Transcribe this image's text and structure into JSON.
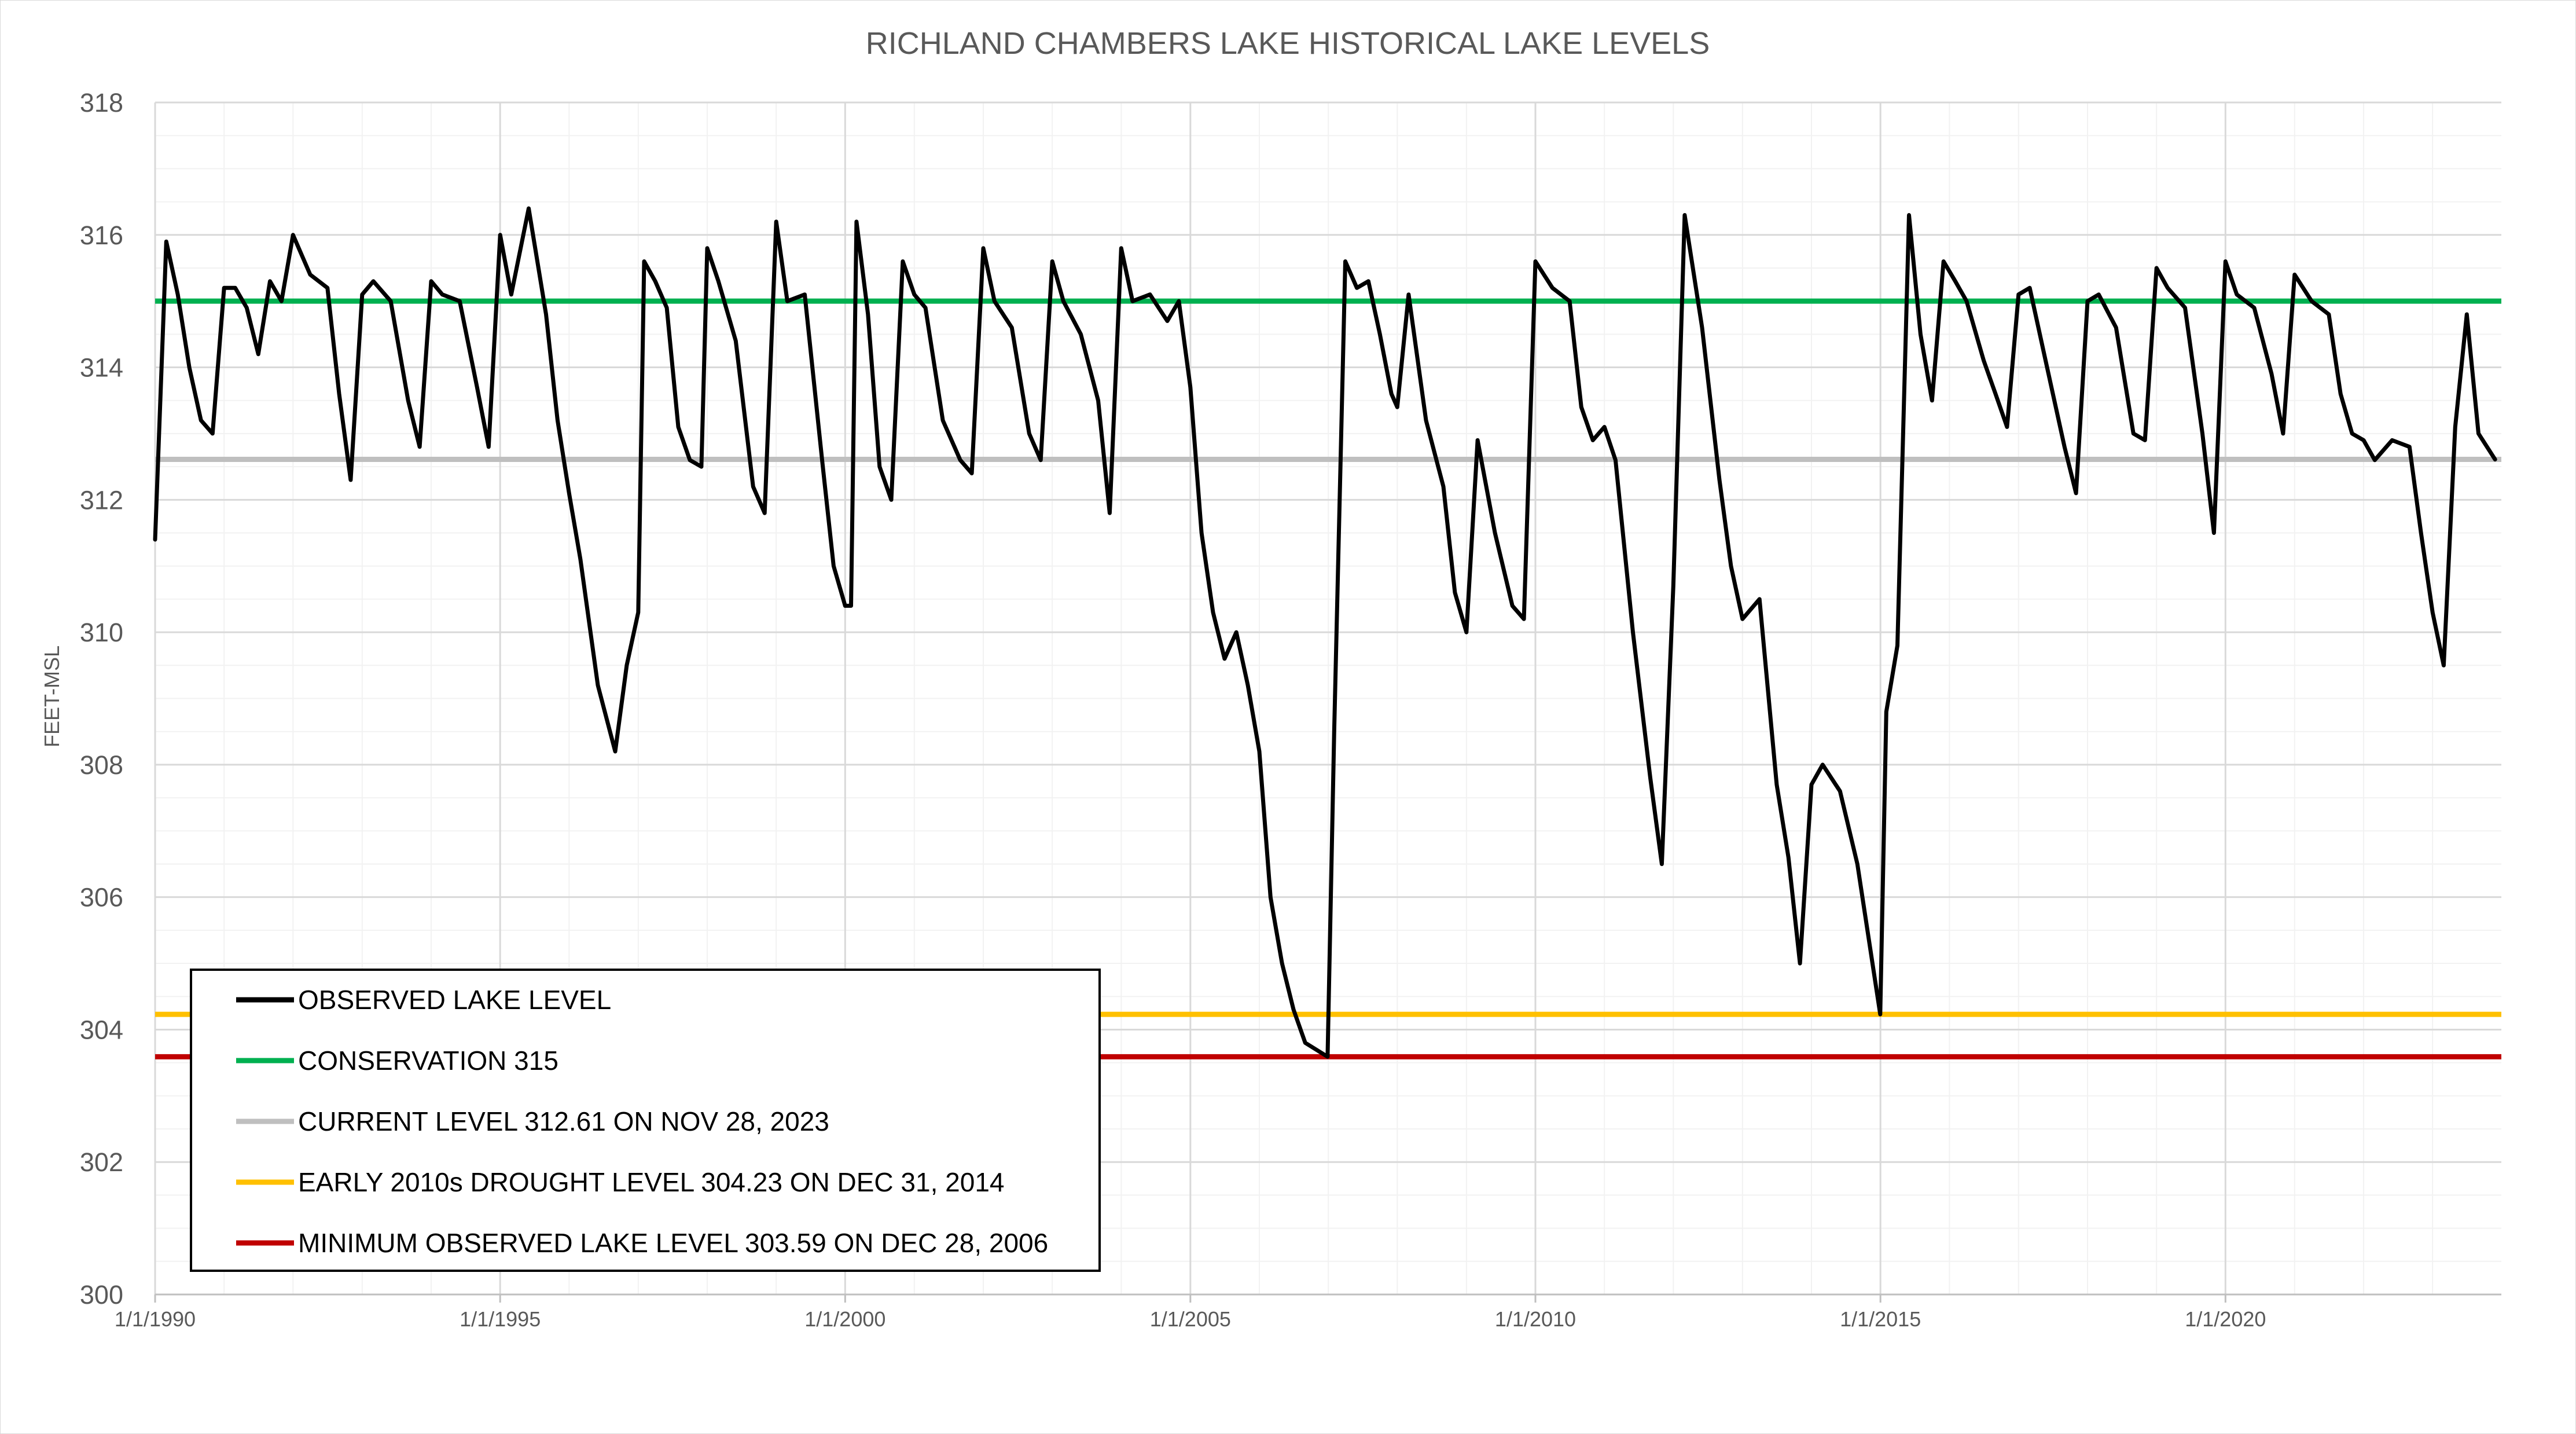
{
  "chart_data": {
    "type": "line",
    "title": "RICHLAND CHAMBERS LAKE HISTORICAL LAKE LEVELS",
    "xlabel": "",
    "ylabel": "FEET-MSL",
    "xlim": [
      "1990-01-01",
      "2023-12-31"
    ],
    "ylim": [
      300,
      318
    ],
    "y_ticks": [
      "300",
      "302",
      "304",
      "306",
      "308",
      "310",
      "312",
      "314",
      "316",
      "318"
    ],
    "x_ticks": [
      {
        "date": "1990-01-01",
        "label": "1/1/1990"
      },
      {
        "date": "1995-01-01",
        "label": "1/1/1995"
      },
      {
        "date": "2000-01-01",
        "label": "1/1/2000"
      },
      {
        "date": "2005-01-01",
        "label": "1/1/2005"
      },
      {
        "date": "2010-01-01",
        "label": "1/1/2010"
      },
      {
        "date": "2015-01-01",
        "label": "1/1/2015"
      },
      {
        "date": "2020-01-01",
        "label": "1/1/2020"
      }
    ],
    "grid": true,
    "legend_position": "bottom-left",
    "series": [
      {
        "name": "OBSERVED LAKE LEVEL",
        "color": "#000000",
        "x": [
          "1990-01-01",
          "1990-03-01",
          "1990-05-01",
          "1990-07-01",
          "1990-09-01",
          "1990-11-01",
          "1991-01-01",
          "1991-03-01",
          "1991-05-01",
          "1991-07-01",
          "1991-09-01",
          "1991-11-01",
          "1992-01-01",
          "1992-04-01",
          "1992-07-01",
          "1992-09-01",
          "1992-11-01",
          "1993-01-01",
          "1993-03-01",
          "1993-06-01",
          "1993-09-01",
          "1993-11-01",
          "1994-01-01",
          "1994-03-01",
          "1994-06-01",
          "1994-09-01",
          "1994-11-01",
          "1995-01-01",
          "1995-03-01",
          "1995-06-01",
          "1995-09-01",
          "1995-11-01",
          "1996-01-01",
          "1996-03-01",
          "1996-06-01",
          "1996-09-01",
          "1996-11-01",
          "1997-01-01",
          "1997-02-01",
          "1997-04-01",
          "1997-06-01",
          "1997-08-01",
          "1997-10-01",
          "1997-12-01",
          "1998-01-01",
          "1998-03-01",
          "1998-06-01",
          "1998-09-01",
          "1998-11-01",
          "1999-01-01",
          "1999-03-01",
          "1999-06-01",
          "1999-09-01",
          "1999-11-01",
          "2000-01-01",
          "2000-02-01",
          "2000-03-01",
          "2000-05-01",
          "2000-07-01",
          "2000-09-01",
          "2000-11-01",
          "2001-01-01",
          "2001-03-01",
          "2001-06-01",
          "2001-09-01",
          "2001-11-01",
          "2002-01-01",
          "2002-03-01",
          "2002-06-01",
          "2002-09-01",
          "2002-11-01",
          "2003-01-01",
          "2003-03-01",
          "2003-06-01",
          "2003-09-01",
          "2003-11-01",
          "2004-01-01",
          "2004-03-01",
          "2004-06-01",
          "2004-09-01",
          "2004-11-01",
          "2005-01-01",
          "2005-03-01",
          "2005-05-01",
          "2005-07-01",
          "2005-09-01",
          "2005-11-01",
          "2006-01-01",
          "2006-03-01",
          "2006-05-01",
          "2006-07-01",
          "2006-09-01",
          "2006-12-28",
          "2007-02-01",
          "2007-04-01",
          "2007-06-01",
          "2007-08-01",
          "2007-10-01",
          "2007-12-01",
          "2008-01-01",
          "2008-03-01",
          "2008-06-01",
          "2008-09-01",
          "2008-11-01",
          "2009-01-01",
          "2009-03-01",
          "2009-06-01",
          "2009-09-01",
          "2009-11-01",
          "2010-01-01",
          "2010-04-01",
          "2010-07-01",
          "2010-09-01",
          "2010-11-01",
          "2011-01-01",
          "2011-03-01",
          "2011-06-01",
          "2011-09-01",
          "2011-11-01",
          "2012-01-01",
          "2012-03-01",
          "2012-06-01",
          "2012-09-01",
          "2012-11-01",
          "2013-01-01",
          "2013-04-01",
          "2013-07-01",
          "2013-09-01",
          "2013-11-01",
          "2014-01-01",
          "2014-03-01",
          "2014-06-01",
          "2014-09-01",
          "2014-12-31",
          "2015-02-01",
          "2015-04-01",
          "2015-06-01",
          "2015-08-01",
          "2015-10-01",
          "2015-12-01",
          "2016-02-01",
          "2016-04-01",
          "2016-07-01",
          "2016-09-01",
          "2016-11-01",
          "2017-01-01",
          "2017-03-01",
          "2017-06-01",
          "2017-09-01",
          "2017-11-01",
          "2018-01-01",
          "2018-03-01",
          "2018-06-01",
          "2018-09-01",
          "2018-11-01",
          "2019-01-01",
          "2019-03-01",
          "2019-06-01",
          "2019-09-01",
          "2019-11-01",
          "2020-01-01",
          "2020-03-01",
          "2020-06-01",
          "2020-09-01",
          "2020-11-01",
          "2021-01-01",
          "2021-04-01",
          "2021-07-01",
          "2021-09-01",
          "2021-11-01",
          "2022-01-01",
          "2022-03-01",
          "2022-06-01",
          "2022-09-01",
          "2022-11-01",
          "2023-01-01",
          "2023-03-01",
          "2023-05-01",
          "2023-07-01",
          "2023-09-01",
          "2023-11-28"
        ],
        "y": [
          311.4,
          315.9,
          315.1,
          314.0,
          313.2,
          313.0,
          315.2,
          315.2,
          314.9,
          314.2,
          315.3,
          315.0,
          316.0,
          315.4,
          315.2,
          313.6,
          312.3,
          315.1,
          315.3,
          315.0,
          313.5,
          312.8,
          315.3,
          315.1,
          315.0,
          313.7,
          312.8,
          316.0,
          315.1,
          316.4,
          314.8,
          313.2,
          312.1,
          311.1,
          309.2,
          308.2,
          309.5,
          310.3,
          315.6,
          315.3,
          314.9,
          313.1,
          312.6,
          312.5,
          315.8,
          315.3,
          314.4,
          312.2,
          311.8,
          316.2,
          315.0,
          315.1,
          312.6,
          311.0,
          310.4,
          310.4,
          316.2,
          314.8,
          312.5,
          312.0,
          315.6,
          315.1,
          314.9,
          313.2,
          312.6,
          312.4,
          315.8,
          315.0,
          314.6,
          313.0,
          312.6,
          315.6,
          315.0,
          314.5,
          313.5,
          311.8,
          315.8,
          315.0,
          315.1,
          314.7,
          315.0,
          313.7,
          311.5,
          310.3,
          309.6,
          310.0,
          309.2,
          308.2,
          306.0,
          305.0,
          304.3,
          303.8,
          303.59,
          308.5,
          315.6,
          315.2,
          315.3,
          314.5,
          313.6,
          313.4,
          315.1,
          313.2,
          312.2,
          310.6,
          310.0,
          312.9,
          311.5,
          310.4,
          310.2,
          315.6,
          315.2,
          315.0,
          313.4,
          312.9,
          313.1,
          312.6,
          310.0,
          307.8,
          306.5,
          310.7,
          316.3,
          314.6,
          312.3,
          311.0,
          310.2,
          310.5,
          307.7,
          306.6,
          305.0,
          307.7,
          308.0,
          307.6,
          306.5,
          304.23,
          308.8,
          309.8,
          316.3,
          314.5,
          313.5,
          315.6,
          315.3,
          315.0,
          314.1,
          313.6,
          313.1,
          315.1,
          315.2,
          314.0,
          312.8,
          312.1,
          315.0,
          315.1,
          314.6,
          313.0,
          312.9,
          315.5,
          315.2,
          314.9,
          313.0,
          311.5,
          315.6,
          315.1,
          314.9,
          313.9,
          313.0,
          315.4,
          315.0,
          314.8,
          313.6,
          313.0,
          312.9,
          312.6,
          312.9,
          312.8,
          311.5,
          310.3,
          309.5,
          313.1,
          314.8,
          313.0,
          312.61
        ]
      },
      {
        "name": "CONSERVATION 315",
        "color": "#00b050",
        "y_const": 315
      },
      {
        "name": "CURRENT LEVEL 312.61 ON NOV 28, 2023",
        "color": "#bfbfbf",
        "y_const": 312.61
      },
      {
        "name": "EARLY 2010s DROUGHT LEVEL 304.23 ON DEC 31, 2014",
        "color": "#ffc000",
        "y_const": 304.23
      },
      {
        "name": "MINIMUM OBSERVED LAKE LEVEL 303.59 ON DEC 28, 2006",
        "color": "#c00000",
        "y_const": 303.59
      }
    ]
  }
}
